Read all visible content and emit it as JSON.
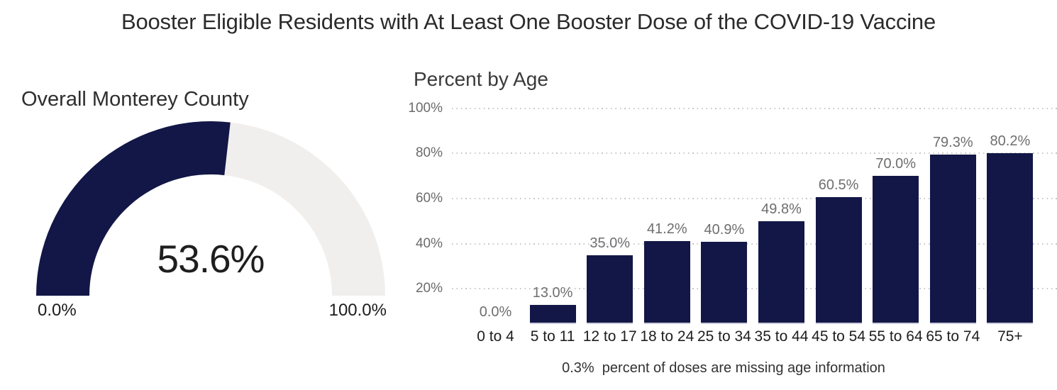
{
  "page_title": "Booster Eligible Residents with At Least One Booster Dose of the COVID-19 Vaccine",
  "colors": {
    "bar_fill": "#121747",
    "gauge_fill": "#121747",
    "gauge_track": "#f1efed",
    "gridline": "#c9c7c5",
    "value_label_text": "#6e6e6e",
    "axis_text": "#1e1e1e",
    "tick_text": "#6b6b6b",
    "title_text": "#2b2b2b"
  },
  "chart_data": [
    {
      "type": "gauge",
      "title": "Overall Monterey County",
      "value": 53.6,
      "value_label": "53.6%",
      "min": 0,
      "max": 100,
      "min_label": "0.0%",
      "max_label": "100.0%"
    },
    {
      "type": "bar",
      "title": "Percent by Age",
      "categories": [
        "0 to 4",
        "5 to 11",
        "12 to 17",
        "18 to 24",
        "25 to 34",
        "35 to 44",
        "45 to 54",
        "55 to 64",
        "65 to 74",
        "75+"
      ],
      "values": [
        0.0,
        13.0,
        35.0,
        41.2,
        40.9,
        49.8,
        60.5,
        70.0,
        79.3,
        80.2
      ],
      "value_labels": [
        "0.0%",
        "13.0%",
        "35.0%",
        "41.2%",
        "40.9%",
        "49.8%",
        "60.5%",
        "70.0%",
        "79.3%",
        "80.2%"
      ],
      "y_ticks": [
        {
          "value": 20,
          "label": "20%"
        },
        {
          "value": 40,
          "label": "40%"
        },
        {
          "value": 60,
          "label": "60%"
        },
        {
          "value": 80,
          "label": "80%"
        },
        {
          "value": 100,
          "label": "100%"
        }
      ],
      "ylim": [
        0,
        100
      ],
      "grid": "dotted-horizontal",
      "footnote": "0.3%  percent of doses are missing age information"
    }
  ]
}
